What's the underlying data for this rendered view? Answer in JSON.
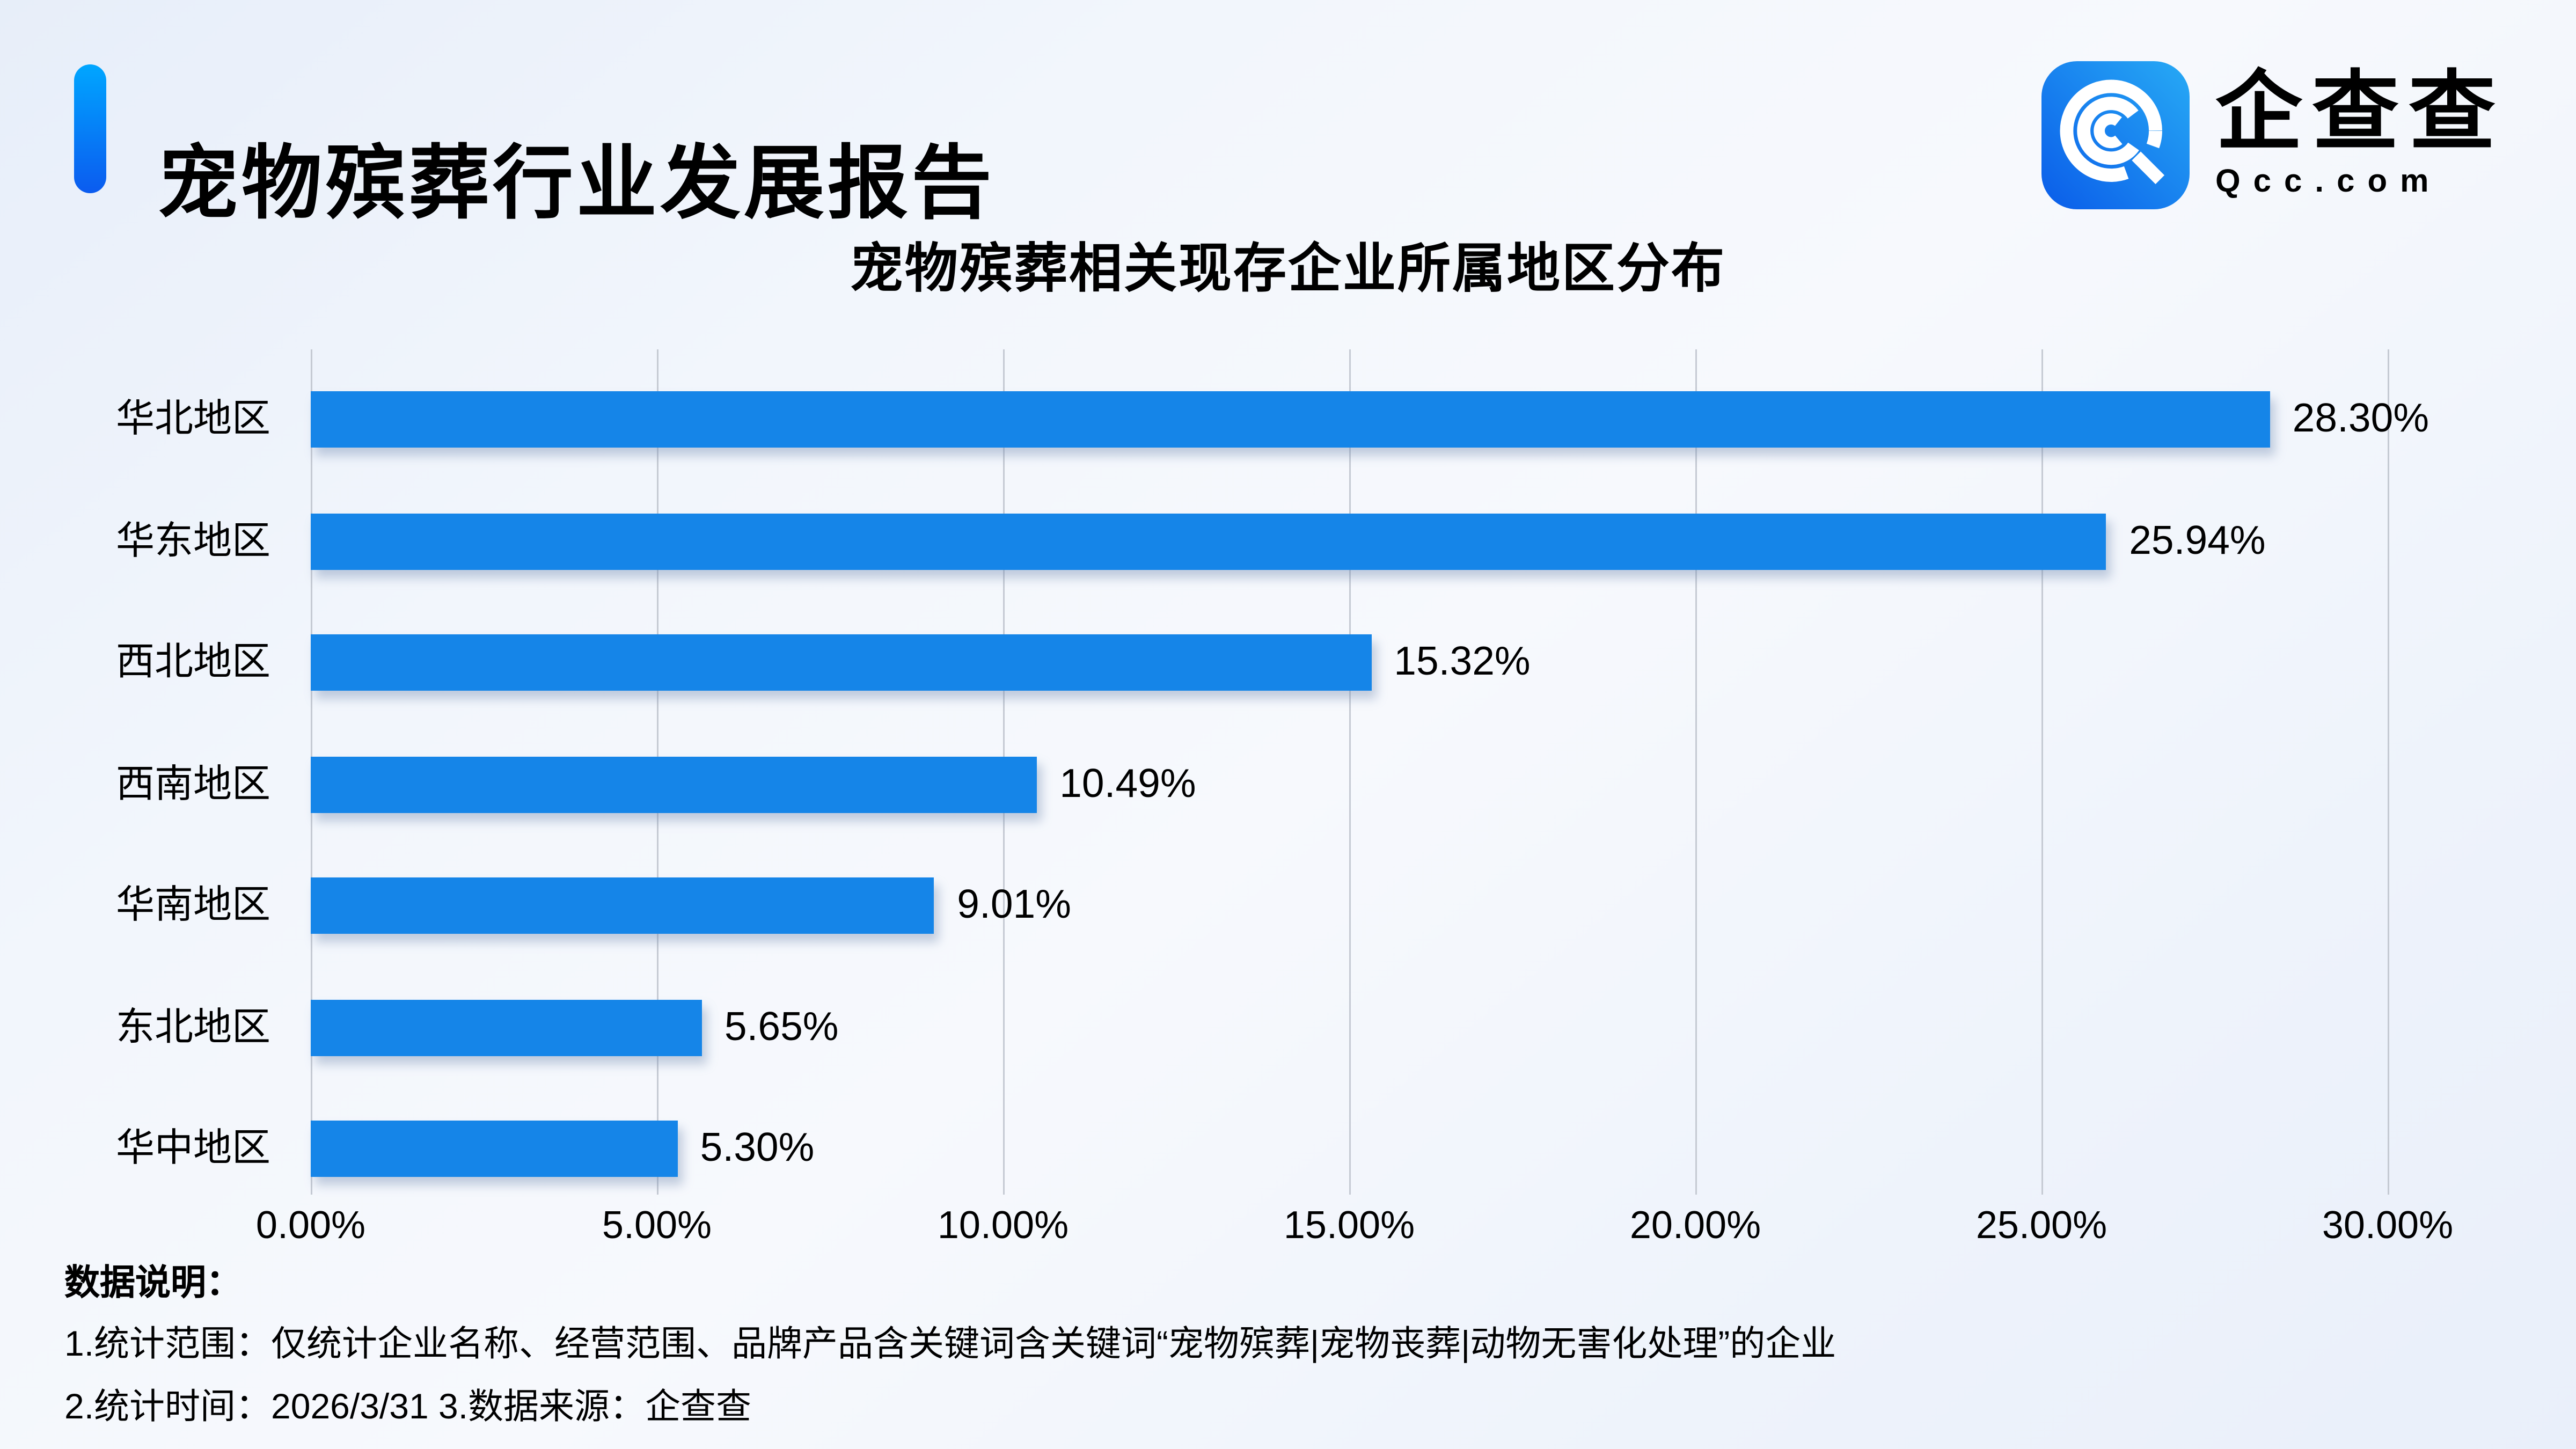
{
  "header": {
    "title": "宠物殡葬行业发展报告"
  },
  "logo": {
    "name": "企查查",
    "domain": "Qcc.com",
    "icon": "qcc-logo-icon",
    "icon_gradient": [
      "#0a5ce9",
      "#27aaf5"
    ]
  },
  "chart_data": {
    "type": "bar",
    "orientation": "horizontal",
    "title": "宠物殡葬相关现存企业所属地区分布",
    "categories": [
      "华北地区",
      "华东地区",
      "西北地区",
      "西南地区",
      "华南地区",
      "东北地区",
      "华中地区"
    ],
    "values": [
      28.3,
      25.94,
      15.32,
      10.49,
      9.01,
      5.65,
      5.3
    ],
    "value_labels": [
      "28.30%",
      "25.94%",
      "15.32%",
      "10.49%",
      "9.01%",
      "5.65%",
      "5.30%"
    ],
    "x_ticks": [
      "0.00%",
      "5.00%",
      "10.00%",
      "15.00%",
      "20.00%",
      "25.00%",
      "30.00%"
    ],
    "x_tick_values": [
      0,
      5,
      10,
      15,
      20,
      25,
      30
    ],
    "xlim": [
      0,
      30
    ],
    "grid": true,
    "legend": "none",
    "bar_color": "#1585e8",
    "gridline_color": "#c5cad3",
    "label_color": "#000000"
  },
  "notes": {
    "heading": "数据说明：",
    "line1": "1.统计范围：仅统计企业名称、经营范围、品牌产品含关键词含关键词“宠物殡葬|宠物丧葬|动物无害化处理”的企业",
    "line2": "2.统计时间：2026/3/31 3.数据来源：企查查"
  },
  "colors": {
    "accent_top": "#00a6ff",
    "accent_bottom": "#0b5bef",
    "background": "#eef3fb",
    "text": "#000000"
  }
}
